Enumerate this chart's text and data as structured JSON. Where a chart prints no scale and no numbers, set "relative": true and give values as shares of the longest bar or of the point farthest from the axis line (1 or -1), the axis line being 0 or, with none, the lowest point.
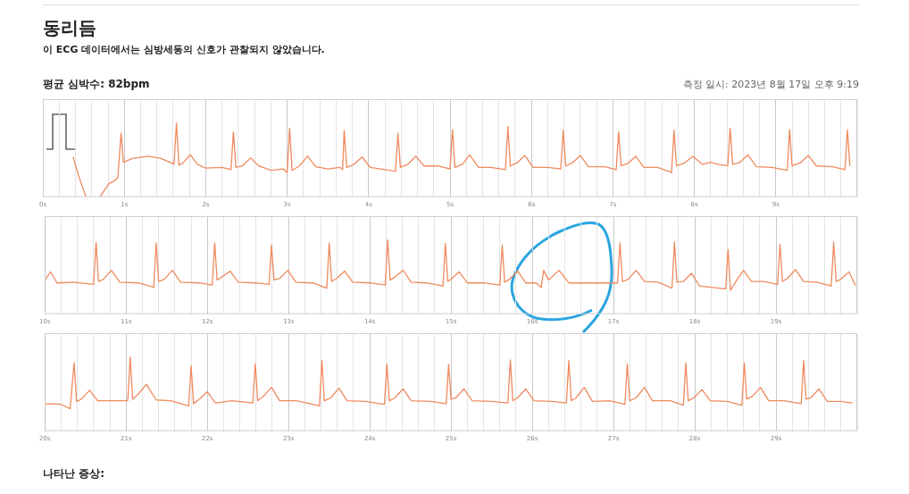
{
  "chart_data": [
    {
      "type": "line",
      "title": "동리듬",
      "subtitle": "이 ECG 데이터에서는 심방세동의 신호가 관찰되지 않았습니다.",
      "annotations": [
        "평균 심박수: 82bpm",
        "측정 일시: 2023년 8월 17일 오후 9:19"
      ],
      "relative": true,
      "grid": "x",
      "legend": false,
      "xlim": [
        0,
        10
      ],
      "xticks": [
        {
          "value": 0,
          "label": "0s"
        },
        {
          "value": 0.2,
          "label": null
        },
        {
          "value": 0.4,
          "label": null
        },
        {
          "value": 0.6,
          "label": null
        },
        {
          "value": 0.8,
          "label": null
        },
        {
          "value": 1,
          "label": "1s"
        },
        {
          "value": 1.2,
          "label": null
        },
        {
          "value": 1.4,
          "label": null
        },
        {
          "value": 1.6,
          "label": null
        },
        {
          "value": 1.8,
          "label": null
        },
        {
          "value": 2,
          "label": "2s"
        },
        {
          "value": 2.2,
          "label": null
        },
        {
          "value": 2.4,
          "label": null
        },
        {
          "value": 2.6,
          "label": null
        },
        {
          "value": 2.8,
          "label": null
        },
        {
          "value": 3,
          "label": "3s"
        },
        {
          "value": 3.2,
          "label": null
        },
        {
          "value": 3.4,
          "label": null
        },
        {
          "value": 3.6,
          "label": null
        },
        {
          "value": 3.8,
          "label": null
        },
        {
          "value": 4,
          "label": "4s"
        },
        {
          "value": 4.2,
          "label": null
        },
        {
          "value": 4.4,
          "label": null
        },
        {
          "value": 4.6,
          "label": null
        },
        {
          "value": 4.8,
          "label": null
        },
        {
          "value": 5,
          "label": "5s"
        },
        {
          "value": 5.2,
          "label": null
        },
        {
          "value": 5.4,
          "label": null
        },
        {
          "value": 5.6,
          "label": null
        },
        {
          "value": 5.8,
          "label": null
        },
        {
          "value": 6,
          "label": "6s"
        },
        {
          "value": 6.2,
          "label": null
        },
        {
          "value": 6.4,
          "label": null
        },
        {
          "value": 6.6,
          "label": null
        },
        {
          "value": 6.8,
          "label": null
        },
        {
          "value": 7,
          "label": "7s"
        },
        {
          "value": 7.2,
          "label": null
        },
        {
          "value": 7.4,
          "label": null
        },
        {
          "value": 7.6,
          "label": null
        },
        {
          "value": 7.8,
          "label": null
        },
        {
          "value": 8,
          "label": "8s"
        },
        {
          "value": 8.2,
          "label": null
        },
        {
          "value": 8.4,
          "label": null
        },
        {
          "value": 8.6,
          "label": null
        },
        {
          "value": 8.8,
          "label": null
        },
        {
          "value": 9,
          "label": "9s"
        },
        {
          "value": 9.2,
          "label": null
        },
        {
          "value": 9.4,
          "label": null
        },
        {
          "value": 9.6,
          "label": null
        },
        {
          "value": 9.8,
          "label": null
        },
        {
          "value": 10,
          "label": null
        }
      ],
      "series": [
        {
          "color": "#ef8a5e",
          "x": [
            0.37,
            0.45,
            0.53,
            0.6,
            0.7,
            0.81,
            0.88,
            0.92,
            0.96,
            0.99,
            1.1,
            1.3,
            1.45,
            1.58,
            1.61,
            1.64,
            1.67,
            1.72,
            1.81,
            1.9,
            2.0,
            2.2,
            2.31,
            2.34,
            2.37,
            2.45,
            2.55,
            2.65,
            2.8,
            2.95,
            3.0,
            3.03,
            3.06,
            3.15,
            3.25,
            3.35,
            3.5,
            3.65,
            3.68,
            3.7,
            3.73,
            3.82,
            3.92,
            4.02,
            4.2,
            4.33,
            4.36,
            4.39,
            4.48,
            4.58,
            4.68,
            4.85,
            5.0,
            5.03,
            5.06,
            5.15,
            5.24,
            5.35,
            5.5,
            5.68,
            5.71,
            5.74,
            5.82,
            5.92,
            6.02,
            6.2,
            6.36,
            6.39,
            6.42,
            6.5,
            6.6,
            6.7,
            6.9,
            7.04,
            7.07,
            7.1,
            7.18,
            7.28,
            7.38,
            7.55,
            7.72,
            7.75,
            7.78,
            7.88,
            7.98,
            8.1,
            8.2,
            8.3,
            8.41,
            8.44,
            8.47,
            8.56,
            8.66,
            8.76,
            8.95,
            9.14,
            9.17,
            9.2,
            9.3,
            9.4,
            9.5,
            9.7,
            9.85,
            9.88,
            9.91
          ],
          "values": [
            0.54,
            0.25,
            0,
            null,
            0,
            0.18,
            0.22,
            0.26,
            0.86,
            0.47,
            0.52,
            0.55,
            0.52,
            0.46,
            0.44,
            1.0,
            0.43,
            0.46,
            0.57,
            0.44,
            0.39,
            0.4,
            0.37,
            0.88,
            0.4,
            0.42,
            0.53,
            0.42,
            0.36,
            0.38,
            0.33,
            0.93,
            0.36,
            0.42,
            0.55,
            0.41,
            0.38,
            0.4,
            0.37,
            0.9,
            0.4,
            0.44,
            0.54,
            0.4,
            0.37,
            0.35,
            0.86,
            0.4,
            0.44,
            0.55,
            0.42,
            0.42,
            0.38,
            0.91,
            0.4,
            0.44,
            0.57,
            0.4,
            0.4,
            0.37,
            0.95,
            0.42,
            0.46,
            0.56,
            0.4,
            0.4,
            0.38,
            0.9,
            0.42,
            0.46,
            0.56,
            0.41,
            0.41,
            0.37,
            0.88,
            0.42,
            0.45,
            0.55,
            0.4,
            0.4,
            0.33,
            0.9,
            0.42,
            0.46,
            0.55,
            0.44,
            0.47,
            0.44,
            0.42,
            0.93,
            0.44,
            0.47,
            0.57,
            0.41,
            0.4,
            0.36,
            0.91,
            0.42,
            0.46,
            0.56,
            0.42,
            0.41,
            0.37,
            0.91,
            0.42
          ]
        }
      ]
    },
    {
      "type": "line",
      "relative": true,
      "grid": "x",
      "legend": false,
      "xlim": [
        10,
        20
      ],
      "xticks": [
        {
          "value": 10,
          "label": "10s"
        },
        {
          "value": 10.2,
          "label": null
        },
        {
          "value": 10.4,
          "label": null
        },
        {
          "value": 10.6,
          "label": null
        },
        {
          "value": 10.8,
          "label": null
        },
        {
          "value": 11,
          "label": "11s"
        },
        {
          "value": 11.2,
          "label": null
        },
        {
          "value": 11.4,
          "label": null
        },
        {
          "value": 11.6,
          "label": null
        },
        {
          "value": 11.8,
          "label": null
        },
        {
          "value": 12,
          "label": "12s"
        },
        {
          "value": 12.2,
          "label": null
        },
        {
          "value": 12.4,
          "label": null
        },
        {
          "value": 12.6,
          "label": null
        },
        {
          "value": 12.8,
          "label": null
        },
        {
          "value": 13,
          "label": "13s"
        },
        {
          "value": 13.2,
          "label": null
        },
        {
          "value": 13.4,
          "label": null
        },
        {
          "value": 13.6,
          "label": null
        },
        {
          "value": 13.8,
          "label": null
        },
        {
          "value": 14,
          "label": "14s"
        },
        {
          "value": 14.2,
          "label": null
        },
        {
          "value": 14.4,
          "label": null
        },
        {
          "value": 14.6,
          "label": null
        },
        {
          "value": 14.8,
          "label": null
        },
        {
          "value": 15,
          "label": "15s"
        },
        {
          "value": 15.2,
          "label": null
        },
        {
          "value": 15.4,
          "label": null
        },
        {
          "value": 15.6,
          "label": null
        },
        {
          "value": 15.8,
          "label": null
        },
        {
          "value": 16,
          "label": "16s"
        },
        {
          "value": 16.2,
          "label": null
        },
        {
          "value": 16.4,
          "label": null
        },
        {
          "value": 16.6,
          "label": null
        },
        {
          "value": 16.8,
          "label": null
        },
        {
          "value": 17,
          "label": "17s"
        },
        {
          "value": 17.2,
          "label": null
        },
        {
          "value": 17.4,
          "label": null
        },
        {
          "value": 17.6,
          "label": null
        },
        {
          "value": 17.8,
          "label": null
        },
        {
          "value": 18,
          "label": "18s"
        },
        {
          "value": 18.2,
          "label": null
        },
        {
          "value": 18.4,
          "label": null
        },
        {
          "value": 18.6,
          "label": null
        },
        {
          "value": 18.8,
          "label": null
        },
        {
          "value": 19,
          "label": "19s"
        },
        {
          "value": 19.2,
          "label": null
        },
        {
          "value": 19.4,
          "label": null
        },
        {
          "value": 19.6,
          "label": null
        },
        {
          "value": 19.8,
          "label": null
        },
        {
          "value": 20,
          "label": null
        }
      ],
      "series": [
        {
          "color": "#ef8a5e",
          "x": [
            10.0,
            10.07,
            10.15,
            10.35,
            10.6,
            10.63,
            10.66,
            10.72,
            10.82,
            10.92,
            11.15,
            11.34,
            11.37,
            11.4,
            11.47,
            11.57,
            11.67,
            11.9,
            12.06,
            12.09,
            12.12,
            12.18,
            12.28,
            12.38,
            12.6,
            12.76,
            12.79,
            12.82,
            12.89,
            12.99,
            13.09,
            13.3,
            13.47,
            13.5,
            13.53,
            13.59,
            13.69,
            13.79,
            14.0,
            14.19,
            14.22,
            14.25,
            14.31,
            14.41,
            14.51,
            14.7,
            14.9,
            14.93,
            14.96,
            15.0,
            15.1,
            15.2,
            15.4,
            15.6,
            15.63,
            15.66,
            15.72,
            15.82,
            15.92,
            16.05,
            16.11,
            16.14,
            16.2,
            16.33,
            16.45,
            16.7,
            16.9,
            17.05,
            17.08,
            17.11,
            17.18,
            17.28,
            17.38,
            17.55,
            17.72,
            17.75,
            17.78,
            17.86,
            17.96,
            18.06,
            18.2,
            18.38,
            18.41,
            18.44,
            18.5,
            18.6,
            18.7,
            18.85,
            19.02,
            19.05,
            19.08,
            19.14,
            19.24,
            19.34,
            19.5,
            19.68,
            19.71,
            19.74,
            19.8,
            19.9,
            19.98
          ],
          "values": [
            0.46,
            0.57,
            0.42,
            0.43,
            0.4,
            0.97,
            0.44,
            0.47,
            0.59,
            0.43,
            0.42,
            0.36,
            0.96,
            0.44,
            0.47,
            0.59,
            0.43,
            0.42,
            0.39,
            0.96,
            0.46,
            0.5,
            0.58,
            0.43,
            0.42,
            0.4,
            0.93,
            0.46,
            0.48,
            0.59,
            0.43,
            0.42,
            0.35,
            0.96,
            0.44,
            0.48,
            0.58,
            0.43,
            0.42,
            0.39,
            1.0,
            0.46,
            0.5,
            0.59,
            0.43,
            0.42,
            0.38,
            0.95,
            0.44,
            0.47,
            0.57,
            0.42,
            0.42,
            0.39,
            0.93,
            0.43,
            0.47,
            0.58,
            0.42,
            0.42,
            0.36,
            0.59,
            0.46,
            0.59,
            0.42,
            0.42,
            0.42,
            0.42,
            0.96,
            0.44,
            0.47,
            0.59,
            0.44,
            0.43,
            0.35,
            0.97,
            0.43,
            0.44,
            0.55,
            0.38,
            0.36,
            0.34,
            0.87,
            0.32,
            0.43,
            0.59,
            0.44,
            0.44,
            0.4,
            0.94,
            0.44,
            0.48,
            0.6,
            0.44,
            0.43,
            0.38,
            0.97,
            0.44,
            0.47,
            0.57,
            0.38
          ]
        }
      ]
    },
    {
      "type": "line",
      "annotations": [
        "나타난 증상:"
      ],
      "relative": true,
      "grid": "x",
      "legend": false,
      "xlim": [
        20,
        30
      ],
      "xticks": [
        {
          "value": 20,
          "label": "20s"
        },
        {
          "value": 20.2,
          "label": null
        },
        {
          "value": 20.4,
          "label": null
        },
        {
          "value": 20.6,
          "label": null
        },
        {
          "value": 20.8,
          "label": null
        },
        {
          "value": 21,
          "label": "21s"
        },
        {
          "value": 21.2,
          "label": null
        },
        {
          "value": 21.4,
          "label": null
        },
        {
          "value": 21.6,
          "label": null
        },
        {
          "value": 21.8,
          "label": null
        },
        {
          "value": 22,
          "label": "22s"
        },
        {
          "value": 22.2,
          "label": null
        },
        {
          "value": 22.4,
          "label": null
        },
        {
          "value": 22.6,
          "label": null
        },
        {
          "value": 22.8,
          "label": null
        },
        {
          "value": 23,
          "label": "23s"
        },
        {
          "value": 23.2,
          "label": null
        },
        {
          "value": 23.4,
          "label": null
        },
        {
          "value": 23.6,
          "label": null
        },
        {
          "value": 23.8,
          "label": null
        },
        {
          "value": 24,
          "label": "24s"
        },
        {
          "value": 24.2,
          "label": null
        },
        {
          "value": 24.4,
          "label": null
        },
        {
          "value": 24.6,
          "label": null
        },
        {
          "value": 24.8,
          "label": null
        },
        {
          "value": 25,
          "label": "25s"
        },
        {
          "value": 25.2,
          "label": null
        },
        {
          "value": 25.4,
          "label": null
        },
        {
          "value": 25.6,
          "label": null
        },
        {
          "value": 25.8,
          "label": null
        },
        {
          "value": 26,
          "label": "26s"
        },
        {
          "value": 26.2,
          "label": null
        },
        {
          "value": 26.4,
          "label": null
        },
        {
          "value": 26.6,
          "label": null
        },
        {
          "value": 26.8,
          "label": null
        },
        {
          "value": 27,
          "label": "27s"
        },
        {
          "value": 27.2,
          "label": null
        },
        {
          "value": 27.4,
          "label": null
        },
        {
          "value": 27.6,
          "label": null
        },
        {
          "value": 27.8,
          "label": null
        },
        {
          "value": 28,
          "label": "28s"
        },
        {
          "value": 28.2,
          "label": null
        },
        {
          "value": 28.4,
          "label": null
        },
        {
          "value": 28.6,
          "label": null
        },
        {
          "value": 28.8,
          "label": null
        },
        {
          "value": 29,
          "label": "29s"
        },
        {
          "value": 29.2,
          "label": null
        },
        {
          "value": 29.4,
          "label": null
        },
        {
          "value": 29.6,
          "label": null
        },
        {
          "value": 29.8,
          "label": null
        },
        {
          "value": 30,
          "label": null
        }
      ],
      "series": [
        {
          "color": "#ef8a5e",
          "x": [
            20.0,
            20.1,
            20.2,
            20.31,
            20.36,
            20.39,
            20.45,
            20.55,
            20.65,
            20.85,
            21.02,
            21.05,
            21.08,
            21.15,
            21.25,
            21.37,
            21.55,
            21.77,
            21.8,
            21.83,
            21.9,
            22.0,
            22.1,
            22.3,
            22.56,
            22.59,
            22.62,
            22.69,
            22.79,
            22.89,
            23.1,
            23.38,
            23.41,
            23.44,
            23.52,
            23.62,
            23.72,
            23.95,
            24.18,
            24.21,
            24.24,
            24.31,
            24.41,
            24.51,
            24.75,
            24.94,
            24.97,
            25.0,
            25.06,
            25.16,
            25.26,
            25.5,
            25.7,
            25.73,
            25.76,
            25.82,
            25.92,
            26.02,
            26.25,
            26.42,
            26.45,
            26.48,
            26.54,
            26.64,
            26.74,
            26.95,
            27.14,
            27.17,
            27.2,
            27.28,
            27.38,
            27.48,
            27.7,
            27.86,
            27.89,
            27.92,
            27.99,
            28.09,
            28.19,
            28.4,
            28.58,
            28.61,
            28.64,
            28.71,
            28.81,
            28.91,
            29.1,
            29.31,
            29.34,
            29.37,
            29.43,
            29.53,
            29.63,
            29.8,
            29.94
          ],
          "values": [
            0.36,
            0.37,
            0.36,
            0.3,
            0.92,
            0.4,
            0.43,
            0.55,
            0.41,
            0.41,
            0.41,
            1.0,
            0.43,
            0.5,
            0.63,
            0.42,
            0.41,
            0.34,
            0.88,
            0.37,
            0.43,
            0.53,
            0.38,
            0.41,
            0.38,
            0.91,
            0.41,
            0.47,
            0.59,
            0.41,
            0.41,
            0.34,
            0.95,
            0.41,
            0.45,
            0.58,
            0.41,
            0.4,
            0.36,
            0.9,
            0.41,
            0.45,
            0.57,
            0.41,
            0.4,
            0.37,
            0.9,
            0.43,
            0.45,
            0.57,
            0.41,
            0.4,
            0.38,
            0.96,
            0.41,
            0.45,
            0.57,
            0.41,
            0.4,
            0.38,
            0.95,
            0.41,
            0.45,
            0.59,
            0.4,
            0.41,
            0.36,
            0.91,
            0.41,
            0.45,
            0.59,
            0.41,
            0.41,
            0.35,
            0.92,
            0.41,
            0.45,
            0.56,
            0.41,
            0.4,
            0.35,
            0.92,
            0.43,
            0.47,
            0.59,
            0.41,
            0.41,
            0.37,
            0.95,
            0.43,
            0.45,
            0.57,
            0.4,
            0.4,
            0.38
          ]
        }
      ]
    }
  ]
}
